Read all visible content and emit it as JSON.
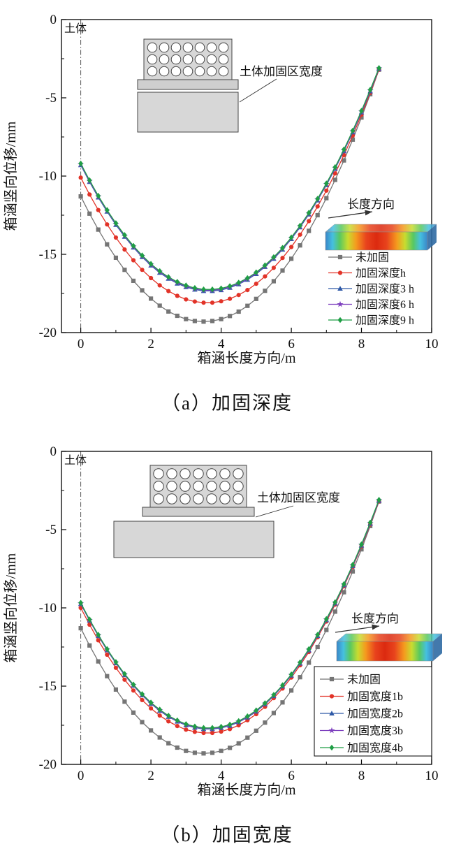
{
  "figure": {
    "captions": [
      "（a）加固深度",
      "（b）加固宽度"
    ]
  },
  "chart_data": [
    {
      "type": "line",
      "caption": "（a）加固深度",
      "xlabel": "箱涵长度方向/m",
      "ylabel": "箱涵竖向位移/mm",
      "xlim": [
        -0.55,
        10
      ],
      "ylim": [
        -20,
        0
      ],
      "xticks": [
        0,
        2,
        4,
        6,
        8,
        10
      ],
      "xminor": [
        1,
        3,
        5,
        7,
        9
      ],
      "yticks": [
        0,
        -5,
        -10,
        -15,
        -20
      ],
      "yminor": [
        -2.5,
        -7.5,
        -12.5,
        -17.5
      ],
      "grid": false,
      "legend_position": "inside-right",
      "legend_border": false,
      "annotations": {
        "soil_label": "土体",
        "soil_line_x": 0,
        "reinforce_label": "土体加固区宽度",
        "direction_label": "长度方向"
      },
      "x": [
        0,
        0.25,
        0.5,
        0.75,
        1,
        1.25,
        1.5,
        1.75,
        2,
        2.25,
        2.5,
        2.75,
        3,
        3.25,
        3.5,
        3.75,
        4,
        4.25,
        4.5,
        4.75,
        5,
        5.25,
        5.5,
        5.75,
        6,
        6.25,
        6.5,
        6.75,
        7,
        7.25,
        7.5,
        7.75,
        8,
        8.25,
        8.5
      ],
      "series": [
        {
          "name": "未加固",
          "color": "#757575",
          "marker": "square",
          "values": [
            -11.3,
            -12.4,
            -13.42,
            -14.36,
            -15.22,
            -15.99,
            -16.69,
            -17.3,
            -17.83,
            -18.28,
            -18.65,
            -18.93,
            -19.14,
            -19.26,
            -19.3,
            -19.26,
            -19.14,
            -18.94,
            -18.66,
            -18.29,
            -17.85,
            -17.33,
            -16.72,
            -16.04,
            -15.28,
            -14.43,
            -13.5,
            -12.5,
            -11.41,
            -10.24,
            -9.0,
            -7.67,
            -6.26,
            -4.77,
            -3.2
          ]
        },
        {
          "name": "加固深度h",
          "color": "#e23328",
          "marker": "circle",
          "values": [
            -10.1,
            -11.18,
            -12.17,
            -13.09,
            -13.93,
            -14.69,
            -15.38,
            -15.99,
            -16.52,
            -16.98,
            -17.35,
            -17.65,
            -17.88,
            -18.02,
            -18.09,
            -18.09,
            -18.0,
            -17.84,
            -17.6,
            -17.28,
            -16.88,
            -16.41,
            -15.86,
            -15.23,
            -14.53,
            -13.74,
            -12.88,
            -11.94,
            -10.93,
            -9.83,
            -8.66,
            -7.41,
            -6.08,
            -4.68,
            -3.2
          ]
        },
        {
          "name": "加固深度3 h",
          "color": "#2e59a7",
          "marker": "triangle",
          "values": [
            -9.3,
            -10.37,
            -11.36,
            -12.27,
            -13.11,
            -13.87,
            -14.56,
            -15.17,
            -15.71,
            -16.17,
            -16.55,
            -16.86,
            -17.09,
            -17.25,
            -17.34,
            -17.34,
            -17.28,
            -17.13,
            -16.91,
            -16.62,
            -16.25,
            -15.8,
            -15.28,
            -14.69,
            -14.02,
            -13.27,
            -12.45,
            -11.55,
            -10.57,
            -9.53,
            -8.4,
            -7.2,
            -5.93,
            -4.58,
            -3.15
          ]
        },
        {
          "name": "加固深度6 h",
          "color": "#7d3fbe",
          "marker": "star",
          "values": [
            -9.25,
            -10.32,
            -11.31,
            -12.22,
            -13.06,
            -13.82,
            -14.51,
            -15.12,
            -15.66,
            -16.12,
            -16.5,
            -16.81,
            -17.04,
            -17.2,
            -17.29,
            -17.29,
            -17.23,
            -17.08,
            -16.86,
            -16.57,
            -16.2,
            -15.75,
            -15.23,
            -14.64,
            -13.97,
            -13.22,
            -12.4,
            -11.5,
            -10.52,
            -9.48,
            -8.35,
            -7.15,
            -5.88,
            -4.53,
            -3.12
          ]
        },
        {
          "name": "加固深度9 h",
          "color": "#1f9e45",
          "marker": "diamond",
          "values": [
            -9.2,
            -10.27,
            -11.26,
            -12.17,
            -13.01,
            -13.77,
            -14.46,
            -15.07,
            -15.61,
            -16.07,
            -16.45,
            -16.76,
            -16.99,
            -17.15,
            -17.24,
            -17.24,
            -17.18,
            -17.03,
            -16.81,
            -16.52,
            -16.15,
            -15.7,
            -15.18,
            -14.59,
            -13.92,
            -13.17,
            -12.35,
            -11.45,
            -10.47,
            -9.43,
            -8.3,
            -7.1,
            -5.83,
            -4.48,
            -3.1
          ]
        }
      ]
    },
    {
      "type": "line",
      "caption": "（b）加固宽度",
      "xlabel": "箱涵长度方向/m",
      "ylabel": "箱涵竖向位移/mm",
      "xlim": [
        -0.55,
        10
      ],
      "ylim": [
        -20,
        0
      ],
      "xticks": [
        0,
        2,
        4,
        6,
        8,
        10
      ],
      "xminor": [
        1,
        3,
        5,
        7,
        9
      ],
      "yticks": [
        0,
        -5,
        -10,
        -15,
        -20
      ],
      "yminor": [
        -2.5,
        -7.5,
        -12.5,
        -17.5
      ],
      "grid": false,
      "legend_position": "inside-right",
      "legend_border": true,
      "annotations": {
        "soil_label": "土体",
        "soil_line_x": 0,
        "reinforce_label": "土体加固区宽度",
        "direction_label": "长度方向"
      },
      "x": [
        0,
        0.25,
        0.5,
        0.75,
        1,
        1.25,
        1.5,
        1.75,
        2,
        2.25,
        2.5,
        2.75,
        3,
        3.25,
        3.5,
        3.75,
        4,
        4.25,
        4.5,
        4.75,
        5,
        5.25,
        5.5,
        5.75,
        6,
        6.25,
        6.5,
        6.75,
        7,
        7.25,
        7.5,
        7.75,
        8,
        8.25,
        8.5
      ],
      "series": [
        {
          "name": "未加固",
          "color": "#757575",
          "marker": "square",
          "values": [
            -11.3,
            -12.4,
            -13.42,
            -14.36,
            -15.22,
            -15.99,
            -16.69,
            -17.3,
            -17.83,
            -18.28,
            -18.65,
            -18.93,
            -19.14,
            -19.26,
            -19.3,
            -19.26,
            -19.14,
            -18.94,
            -18.66,
            -18.29,
            -17.85,
            -17.33,
            -16.72,
            -16.04,
            -15.28,
            -14.43,
            -13.5,
            -12.5,
            -11.41,
            -10.24,
            -9.0,
            -7.67,
            -6.26,
            -4.77,
            -3.2
          ]
        },
        {
          "name": "加固宽度1b",
          "color": "#e23328",
          "marker": "circle",
          "values": [
            -10.0,
            -11.07,
            -12.07,
            -12.99,
            -13.83,
            -14.59,
            -15.28,
            -15.89,
            -16.42,
            -16.88,
            -17.25,
            -17.55,
            -17.78,
            -17.92,
            -17.99,
            -17.99,
            -17.9,
            -17.74,
            -17.5,
            -17.18,
            -16.79,
            -16.32,
            -15.77,
            -15.15,
            -14.45,
            -13.67,
            -12.82,
            -11.88,
            -10.87,
            -9.79,
            -8.62,
            -7.38,
            -6.07,
            -4.67,
            -3.2
          ]
        },
        {
          "name": "加固宽度2b",
          "color": "#2e59a7",
          "marker": "triangle",
          "values": [
            -9.75,
            -10.81,
            -11.79,
            -12.7,
            -13.53,
            -14.29,
            -14.97,
            -15.58,
            -16.12,
            -16.57,
            -16.96,
            -17.26,
            -17.5,
            -17.65,
            -17.74,
            -17.74,
            -17.67,
            -17.53,
            -17.3,
            -17.0,
            -16.62,
            -16.16,
            -15.63,
            -15.01,
            -14.32,
            -13.55,
            -12.71,
            -11.79,
            -10.78,
            -9.71,
            -8.55,
            -7.32,
            -6.01,
            -4.62,
            -3.15
          ]
        },
        {
          "name": "加固宽度3b",
          "color": "#7d3fbe",
          "marker": "star",
          "values": [
            -9.72,
            -10.78,
            -11.76,
            -12.67,
            -13.5,
            -14.26,
            -14.94,
            -15.55,
            -16.09,
            -16.54,
            -16.93,
            -17.23,
            -17.47,
            -17.62,
            -17.71,
            -17.71,
            -17.64,
            -17.5,
            -17.27,
            -16.97,
            -16.59,
            -16.13,
            -15.6,
            -14.98,
            -14.29,
            -13.52,
            -12.68,
            -11.76,
            -10.75,
            -9.68,
            -8.52,
            -7.29,
            -5.98,
            -4.59,
            -3.12
          ]
        },
        {
          "name": "加固宽度4b",
          "color": "#1f9e45",
          "marker": "diamond",
          "values": [
            -9.68,
            -10.74,
            -11.72,
            -12.63,
            -13.46,
            -14.22,
            -14.9,
            -15.51,
            -16.05,
            -16.5,
            -16.89,
            -17.19,
            -17.43,
            -17.58,
            -17.67,
            -17.67,
            -17.6,
            -17.46,
            -17.23,
            -16.93,
            -16.55,
            -16.09,
            -15.56,
            -14.94,
            -14.25,
            -13.48,
            -12.64,
            -11.72,
            -10.71,
            -9.64,
            -8.48,
            -7.25,
            -5.94,
            -4.55,
            -3.1
          ]
        }
      ]
    }
  ]
}
